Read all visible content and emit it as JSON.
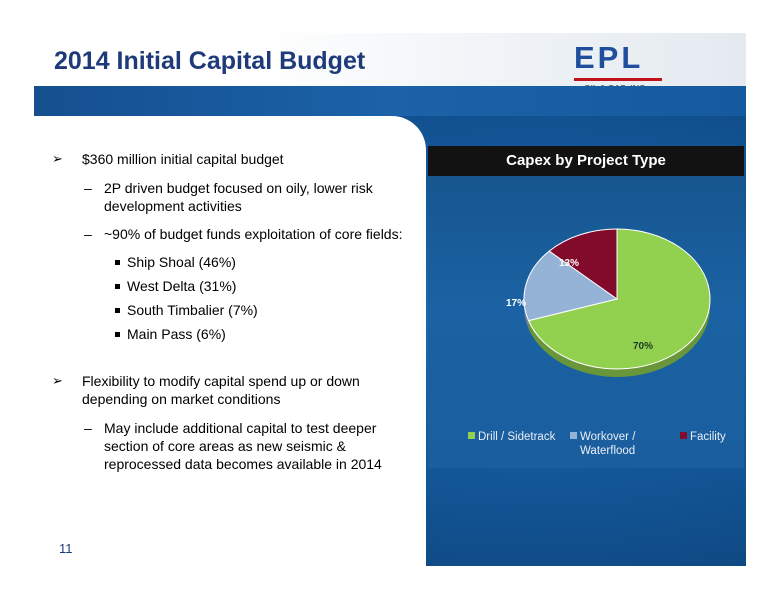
{
  "slide": {
    "title": "2014 Initial Capital Budget",
    "page_number": "11",
    "logo": {
      "text": "EPL",
      "subtext": "OIL & GAS, INC."
    }
  },
  "bullets": {
    "b1": "$360 million initial capital budget",
    "b1_sub1_line1": "2P driven budget focused on oily, lower risk",
    "b1_sub1_line2": "development activities",
    "b1_sub2": "~90% of budget funds exploitation of core fields:",
    "fields": [
      "Ship Shoal (46%)",
      "West Delta (31%)",
      "South Timbalier (7%)",
      "Main Pass (6%)"
    ],
    "b2_line1": "Flexibility to modify capital spend up or down",
    "b2_line2": "depending on market conditions",
    "b2_sub1_line1": "May include additional capital to test deeper",
    "b2_sub1_line2": "section of core areas as new seismic &",
    "b2_sub1_line3": "reprocessed data becomes available in 2014"
  },
  "chart_data": {
    "type": "pie",
    "title": "Capex by Project Type",
    "categories": [
      "Drill / Sidetrack",
      "Workover / Waterflood",
      "Facility"
    ],
    "legend_lines": [
      [
        "Drill / Sidetrack"
      ],
      [
        "Workover /",
        "Waterflood"
      ],
      [
        "Facility"
      ]
    ],
    "values": [
      70,
      17,
      13
    ],
    "labels": [
      "70%",
      "17%",
      "13%"
    ],
    "colors": [
      "#92d050",
      "#95b3d7",
      "#820a2a"
    ],
    "legend_position": "bottom"
  }
}
